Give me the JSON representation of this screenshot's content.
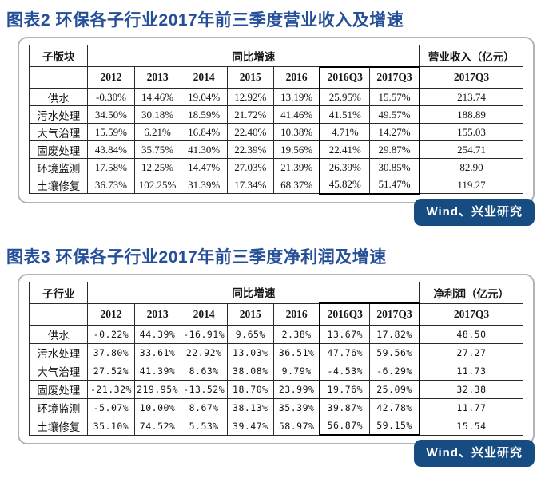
{
  "colors": {
    "title_blue": "#254f99",
    "badge_background": "#174c82",
    "badge_text": "#ffffff",
    "panel_border": "#b3b3b3",
    "table_border": "#2b2b2b"
  },
  "figures": [
    {
      "id": "figure-2",
      "title": "图表2 环保各子行业2017年前三季度营业收入及增速",
      "source": "Wind、兴业研究",
      "table": {
        "corner_header": "子版块",
        "group_header": "同比增速",
        "value_group_header": "营业收入（亿元）",
        "year_headers": [
          "2012",
          "2013",
          "2014",
          "2015",
          "2016",
          "2016Q3",
          "2017Q3"
        ],
        "value_header": "2017Q3",
        "rows": [
          {
            "label": "供水",
            "growth": [
              "-0.30%",
              "14.46%",
              "19.04%",
              "12.92%",
              "13.19%",
              "25.95%",
              "15.57%"
            ],
            "value": "213.74"
          },
          {
            "label": "污水处理",
            "growth": [
              "34.50%",
              "30.18%",
              "18.59%",
              "21.72%",
              "41.46%",
              "41.51%",
              "49.57%"
            ],
            "value": "188.89"
          },
          {
            "label": "大气治理",
            "growth": [
              "15.59%",
              "6.21%",
              "16.84%",
              "22.40%",
              "10.38%",
              "4.71%",
              "14.27%"
            ],
            "value": "155.03"
          },
          {
            "label": "固废处理",
            "growth": [
              "43.84%",
              "35.75%",
              "41.30%",
              "22.39%",
              "19.56%",
              "22.41%",
              "29.87%"
            ],
            "value": "254.71"
          },
          {
            "label": "环境监测",
            "growth": [
              "17.58%",
              "12.25%",
              "14.47%",
              "27.03%",
              "21.39%",
              "26.39%",
              "30.85%"
            ],
            "value": "82.90"
          },
          {
            "label": "土壤修复",
            "growth": [
              "36.73%",
              "102.25%",
              "31.39%",
              "17.34%",
              "68.37%",
              "45.82%",
              "51.47%"
            ],
            "value": "119.27"
          }
        ]
      }
    },
    {
      "id": "figure-3",
      "title": "图表3 环保各子行业2017年前三季度净利润及增速",
      "source": "Wind、兴业研究",
      "table": {
        "corner_header": "子行业",
        "group_header": "同比增速",
        "value_group_header": "净利润（亿元）",
        "year_headers": [
          "2012",
          "2013",
          "2014",
          "2015",
          "2016",
          "2016Q3",
          "2017Q3"
        ],
        "value_header": "2017Q3",
        "rows": [
          {
            "label": "供水",
            "growth": [
              "-0.22%",
              "44.39%",
              "-16.91%",
              "9.65%",
              "2.38%",
              "13.67%",
              "17.82%"
            ],
            "value": "48.50"
          },
          {
            "label": "污水处理",
            "growth": [
              "37.80%",
              "33.61%",
              "22.92%",
              "13.03%",
              "36.51%",
              "47.76%",
              "59.56%"
            ],
            "value": "27.27"
          },
          {
            "label": "大气治理",
            "growth": [
              "27.52%",
              "41.39%",
              "8.63%",
              "38.08%",
              "9.79%",
              "-4.53%",
              "-6.29%"
            ],
            "value": "11.73"
          },
          {
            "label": "固废处理",
            "growth": [
              "-21.32%",
              "219.95%",
              "-13.52%",
              "18.70%",
              "23.99%",
              "19.76%",
              "25.09%"
            ],
            "value": "32.38"
          },
          {
            "label": "环境监测",
            "growth": [
              "-5.07%",
              "10.00%",
              "8.67%",
              "38.13%",
              "35.39%",
              "39.87%",
              "42.78%"
            ],
            "value": "11.77"
          },
          {
            "label": "土壤修复",
            "growth": [
              "35.10%",
              "74.52%",
              "5.53%",
              "39.47%",
              "58.97%",
              "56.87%",
              "59.15%"
            ],
            "value": "15.54"
          }
        ]
      }
    }
  ]
}
